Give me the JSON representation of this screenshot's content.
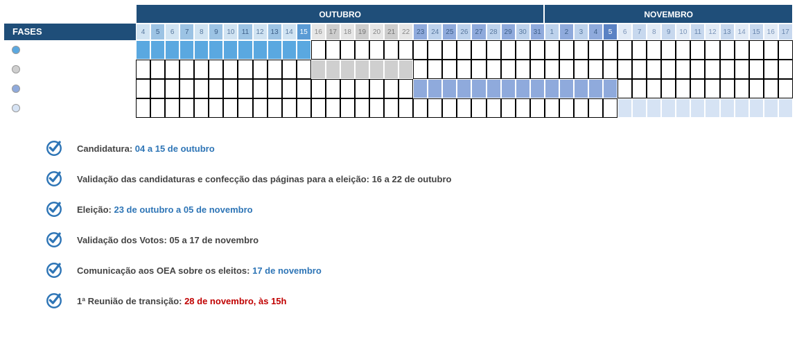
{
  "colors": {
    "header_bg": "#1f4e79",
    "header_text": "#ffffff",
    "grid_border": "#000000",
    "cell_border": "#ffffff"
  },
  "months": [
    {
      "name": "OUTUBRO",
      "span": 28,
      "bg": "#1f4e79"
    },
    {
      "name": "NOVEMBRO",
      "span": 17,
      "bg": "#1f4e79"
    }
  ],
  "fases_label": "FASES",
  "days": [
    {
      "n": 4,
      "bg": "#d0e3f2",
      "fg": "#5a7aa0"
    },
    {
      "n": 5,
      "bg": "#9cc3e4",
      "fg": "#3d5f88"
    },
    {
      "n": 6,
      "bg": "#d0e3f2",
      "fg": "#5a7aa0"
    },
    {
      "n": 7,
      "bg": "#9cc3e4",
      "fg": "#3d5f88"
    },
    {
      "n": 8,
      "bg": "#d0e3f2",
      "fg": "#5a7aa0"
    },
    {
      "n": 9,
      "bg": "#9cc3e4",
      "fg": "#3d5f88"
    },
    {
      "n": 10,
      "bg": "#d0e3f2",
      "fg": "#5a7aa0"
    },
    {
      "n": 11,
      "bg": "#9cc3e4",
      "fg": "#3d5f88"
    },
    {
      "n": 12,
      "bg": "#d0e3f2",
      "fg": "#5a7aa0"
    },
    {
      "n": 13,
      "bg": "#9cc3e4",
      "fg": "#3d5f88"
    },
    {
      "n": 14,
      "bg": "#d0e3f2",
      "fg": "#5a7aa0"
    },
    {
      "n": 15,
      "bg": "#5b9bd5",
      "fg": "#ffffff"
    },
    {
      "n": 16,
      "bg": "#e6e6e6",
      "fg": "#888"
    },
    {
      "n": 17,
      "bg": "#cdcdcd",
      "fg": "#777"
    },
    {
      "n": 18,
      "bg": "#e6e6e6",
      "fg": "#888"
    },
    {
      "n": 19,
      "bg": "#cdcdcd",
      "fg": "#777"
    },
    {
      "n": 20,
      "bg": "#e6e6e6",
      "fg": "#888"
    },
    {
      "n": 21,
      "bg": "#cdcdcd",
      "fg": "#777"
    },
    {
      "n": 22,
      "bg": "#e6e6e6",
      "fg": "#888"
    },
    {
      "n": 23,
      "bg": "#8faadc",
      "fg": "#3d5f88"
    },
    {
      "n": 24,
      "bg": "#bdd2ec",
      "fg": "#5a7aa0"
    },
    {
      "n": 25,
      "bg": "#8faadc",
      "fg": "#3d5f88"
    },
    {
      "n": 26,
      "bg": "#bdd2ec",
      "fg": "#5a7aa0"
    },
    {
      "n": 27,
      "bg": "#8faadc",
      "fg": "#3d5f88"
    },
    {
      "n": 28,
      "bg": "#bdd2ec",
      "fg": "#5a7aa0"
    },
    {
      "n": 29,
      "bg": "#8faadc",
      "fg": "#3d5f88"
    },
    {
      "n": 30,
      "bg": "#bdd2ec",
      "fg": "#5a7aa0"
    },
    {
      "n": 31,
      "bg": "#8faadc",
      "fg": "#3d5f88"
    },
    {
      "n": 1,
      "bg": "#bdd2ec",
      "fg": "#5a7aa0"
    },
    {
      "n": 2,
      "bg": "#8faadc",
      "fg": "#3d5f88"
    },
    {
      "n": 3,
      "bg": "#bdd2ec",
      "fg": "#5a7aa0"
    },
    {
      "n": 4,
      "bg": "#8faadc",
      "fg": "#3d5f88"
    },
    {
      "n": 5,
      "bg": "#5b82c4",
      "fg": "#ffffff"
    },
    {
      "n": 6,
      "bg": "#e2ebf6",
      "fg": "#7b94b8"
    },
    {
      "n": 7,
      "bg": "#c7d8ee",
      "fg": "#6886ad"
    },
    {
      "n": 8,
      "bg": "#e2ebf6",
      "fg": "#7b94b8"
    },
    {
      "n": 9,
      "bg": "#c7d8ee",
      "fg": "#6886ad"
    },
    {
      "n": 10,
      "bg": "#e2ebf6",
      "fg": "#7b94b8"
    },
    {
      "n": 11,
      "bg": "#c7d8ee",
      "fg": "#6886ad"
    },
    {
      "n": 12,
      "bg": "#e2ebf6",
      "fg": "#7b94b8"
    },
    {
      "n": 13,
      "bg": "#c7d8ee",
      "fg": "#6886ad"
    },
    {
      "n": 14,
      "bg": "#e2ebf6",
      "fg": "#7b94b8"
    },
    {
      "n": 15,
      "bg": "#c7d8ee",
      "fg": "#6886ad"
    },
    {
      "n": 16,
      "bg": "#e2ebf6",
      "fg": "#7b94b8"
    },
    {
      "n": 17,
      "bg": "#c7d8ee",
      "fg": "#6886ad"
    }
  ],
  "phases": [
    {
      "dot": "#5aa8e0",
      "start": 0,
      "end": 11,
      "fill": "#5aa8e0"
    },
    {
      "dot": "#cfcfcf",
      "start": 12,
      "end": 18,
      "fill": "#cfcfcf"
    },
    {
      "dot": "#8faadc",
      "start": 19,
      "end": 32,
      "fill": "#8faadc"
    },
    {
      "dot": "#d6e3f4",
      "start": 33,
      "end": 44,
      "fill": "#d6e3f4"
    }
  ],
  "total_days": 45,
  "legend": {
    "check_color": "#2e75b6",
    "items": [
      {
        "label": "Candidatura: ",
        "bold": "04 a 15 de outubro",
        "bold_color": "#2e75b6",
        "label_color": "#444"
      },
      {
        "label": "Validação das candidaturas e confecção das páginas para a eleição: ",
        "bold": "16 a 22 de outubro",
        "bold_color": "#444",
        "label_color": "#444"
      },
      {
        "label": "Eleição: ",
        "bold": "23 de outubro a 05 de novembro",
        "bold_color": "#2e75b6",
        "label_color": "#444"
      },
      {
        "label": "Validação dos Votos: ",
        "bold": "05 a 17 de novembro",
        "bold_color": "#444",
        "label_color": "#444"
      },
      {
        "label": "Comunicação aos OEA sobre os eleitos: ",
        "bold": "17 de novembro",
        "bold_color": "#2e75b6",
        "label_color": "#444"
      },
      {
        "label": "1ª Reunião de transição: ",
        "bold": "28 de novembro, às 15h",
        "bold_color": "#c00000",
        "label_color": "#444"
      }
    ]
  }
}
